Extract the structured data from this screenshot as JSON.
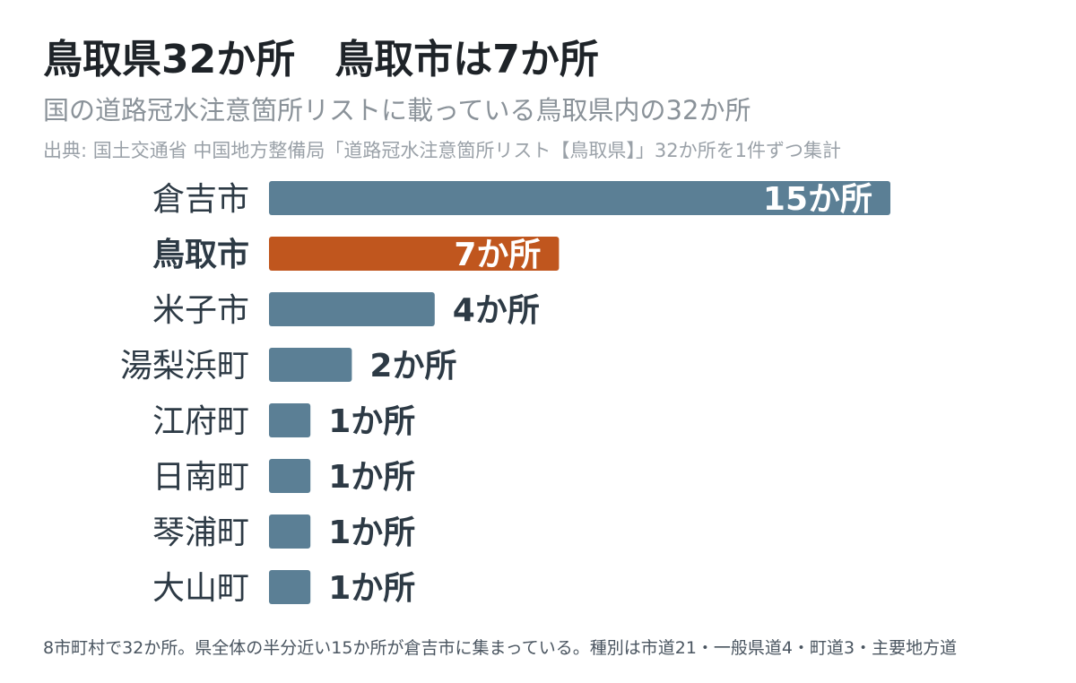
{
  "header": {
    "title": "鳥取県32か所　鳥取市は7か所",
    "subtitle": "国の道路冠水注意箇所リストに載っている鳥取県内の32か所",
    "source": "出典: 国土交通省 中国地方整備局「道路冠水注意箇所リスト【鳥取県】」32か所を1件ずつ集計"
  },
  "footnote": "8市町村で32か所。県全体の半分近い15か所が倉吉市に集まっている。種別は市道21・一般県道4・町道3・主要地方道",
  "colors": {
    "bar": "#5b7f95",
    "highlight": "#c0561e",
    "label": "#2d3a45",
    "value_label": "#2d3a45",
    "value_label_inside": "#ffffff"
  },
  "chart_data": {
    "type": "bar",
    "orientation": "horizontal",
    "categories": [
      "倉吉市",
      "鳥取市",
      "米子市",
      "湯梨浜町",
      "江府町",
      "日南町",
      "琴浦町",
      "大山町"
    ],
    "values": [
      15,
      7,
      4,
      2,
      1,
      1,
      1,
      1
    ],
    "value_labels": [
      "15か所",
      "7か所",
      "4か所",
      "2か所",
      "1か所",
      "1か所",
      "1か所",
      "1か所"
    ],
    "highlight_category": "鳥取市",
    "title": "",
    "xlabel": "",
    "ylabel": "",
    "xlim": [
      0,
      15
    ],
    "grid": false,
    "legend": "none"
  }
}
